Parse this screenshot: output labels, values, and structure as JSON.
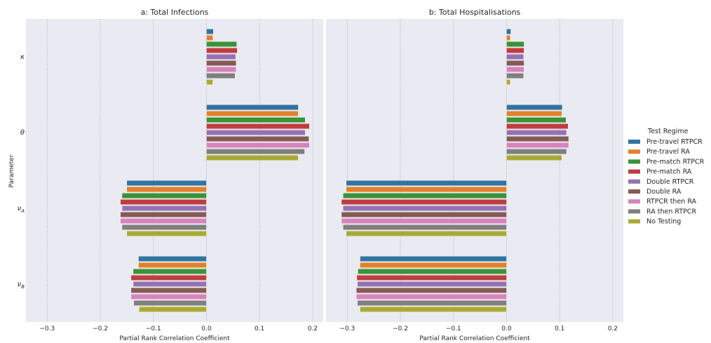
{
  "chart_data": {
    "type": "bar",
    "orientation": "horizontal",
    "ylabel": "Parameter",
    "categories": [
      "κ",
      "θ",
      "ν_A",
      "ν_B"
    ],
    "category_labels": [
      {
        "base": "κ",
        "sub": ""
      },
      {
        "base": "θ",
        "sub": ""
      },
      {
        "base": "ν",
        "sub": "A"
      },
      {
        "base": "ν",
        "sub": "B"
      }
    ],
    "legend": {
      "title": "Test Regime",
      "position": "right",
      "entries": [
        {
          "name": "Pre-travel RTPCR",
          "color": "#3274a1"
        },
        {
          "name": "Pre-travel RA",
          "color": "#e1812c"
        },
        {
          "name": "Pre-match RTPCR",
          "color": "#3a923a"
        },
        {
          "name": "Pre-match RA",
          "color": "#c03d3e"
        },
        {
          "name": "Double RTPCR",
          "color": "#9372b2"
        },
        {
          "name": "Double RA",
          "color": "#845b53"
        },
        {
          "name": "RTPCR then RA",
          "color": "#d684bd"
        },
        {
          "name": "RA then RTPCR",
          "color": "#7f7f7f"
        },
        {
          "name": "No Testing",
          "color": "#a9aa35"
        }
      ]
    },
    "panels": [
      {
        "title": "a: Total Infections",
        "xlabel": "Partial Rank Correlation Coefficient",
        "xlim": [
          -0.34,
          0.22
        ],
        "xticks": [
          -0.3,
          -0.2,
          -0.1,
          0.0,
          0.1,
          0.2
        ],
        "xtick_labels": [
          "−0.3",
          "−0.2",
          "−0.1",
          "0.0",
          "0.1",
          "0.2"
        ],
        "grid": "vertical",
        "values": [
          [
            0.013,
            0.012,
            0.057,
            0.058,
            0.055,
            0.056,
            0.056,
            0.054,
            0.012
          ],
          [
            0.173,
            0.173,
            0.186,
            0.194,
            0.186,
            0.193,
            0.194,
            0.185,
            0.173
          ],
          [
            -0.15,
            -0.15,
            -0.159,
            -0.162,
            -0.159,
            -0.162,
            -0.162,
            -0.159,
            -0.15
          ],
          [
            -0.128,
            -0.128,
            -0.138,
            -0.142,
            -0.138,
            -0.142,
            -0.142,
            -0.137,
            -0.127
          ]
        ]
      },
      {
        "title": "b: Total Hospitalisations",
        "xlabel": "Partial Rank Correlation Coefficient",
        "xlim": [
          -0.34,
          0.22
        ],
        "xticks": [
          -0.3,
          -0.2,
          -0.1,
          0.0,
          0.1,
          0.2
        ],
        "xtick_labels": [
          "−0.3",
          "−0.2",
          "−0.1",
          "0.0",
          "0.1",
          "0.2"
        ],
        "grid": "vertical",
        "values": [
          [
            0.008,
            0.007,
            0.033,
            0.033,
            0.032,
            0.033,
            0.033,
            0.032,
            0.007
          ],
          [
            0.105,
            0.104,
            0.112,
            0.116,
            0.113,
            0.117,
            0.117,
            0.113,
            0.104
          ],
          [
            -0.302,
            -0.302,
            -0.308,
            -0.311,
            -0.308,
            -0.311,
            -0.311,
            -0.308,
            -0.302
          ],
          [
            -0.276,
            -0.276,
            -0.28,
            -0.282,
            -0.281,
            -0.283,
            -0.283,
            -0.281,
            -0.276
          ]
        ]
      }
    ]
  }
}
